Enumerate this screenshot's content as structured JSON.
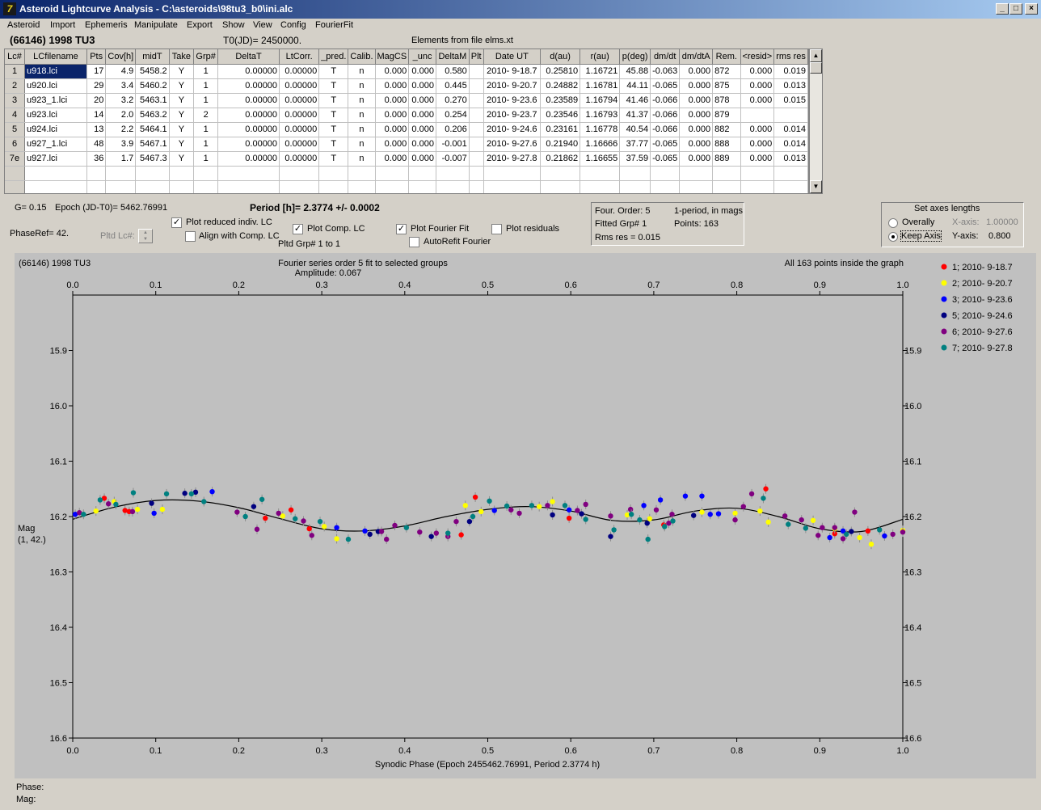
{
  "window": {
    "title": "Asteroid Lightcurve Analysis - C:\\asteroids\\98tu3_b0\\ini.alc",
    "controls": [
      "_",
      "□",
      "×"
    ]
  },
  "menu": [
    "Asteroid",
    "Import",
    "Ephemeris",
    "Manipulate",
    "Export",
    "Show",
    "View",
    "Config",
    "FourierFit"
  ],
  "header": {
    "object": "(66146) 1998 TU3",
    "t0": "T0(JD)= 2450000.",
    "elements": "Elements from file elms.xt"
  },
  "table": {
    "columns": [
      "Lc#",
      "LCfilename",
      "Pts",
      "Cov[h]",
      "midT",
      "Take",
      "Grp#",
      "DeltaT",
      "LtCorr.",
      "_pred.",
      "Calib.",
      "MagCS",
      "_unc",
      "DeltaM",
      "Plt",
      "Date UT",
      "d(au)",
      "r(au)",
      "p(deg)",
      "dm/dt",
      "dm/dtA",
      "Rem.",
      "<resid>",
      "rms res"
    ],
    "rows": [
      [
        "1",
        "u918.lci",
        "17",
        "4.9",
        "5458.2",
        "Y",
        "1",
        "0.00000",
        "0.00000",
        "T",
        "n",
        "0.000",
        "0.000",
        "0.580",
        "",
        "2010- 9-18.7",
        "0.25810",
        "1.16721",
        "45.88",
        "-0.063",
        "0.000",
        "872",
        "0.000",
        "0.019"
      ],
      [
        "2",
        "u920.lci",
        "29",
        "3.4",
        "5460.2",
        "Y",
        "1",
        "0.00000",
        "0.00000",
        "T",
        "n",
        "0.000",
        "0.000",
        "0.445",
        "",
        "2010- 9-20.7",
        "0.24882",
        "1.16781",
        "44.11",
        "-0.065",
        "0.000",
        "875",
        "0.000",
        "0.013"
      ],
      [
        "3",
        "u923_1.lci",
        "20",
        "3.2",
        "5463.1",
        "Y",
        "1",
        "0.00000",
        "0.00000",
        "T",
        "n",
        "0.000",
        "0.000",
        "0.270",
        "",
        "2010- 9-23.6",
        "0.23589",
        "1.16794",
        "41.46",
        "-0.066",
        "0.000",
        "878",
        "0.000",
        "0.015"
      ],
      [
        "4",
        "u923.lci",
        "14",
        "2.0",
        "5463.2",
        "Y",
        "2",
        "0.00000",
        "0.00000",
        "T",
        "n",
        "0.000",
        "0.000",
        "0.254",
        "",
        "2010- 9-23.7",
        "0.23546",
        "1.16793",
        "41.37",
        "-0.066",
        "0.000",
        "879",
        "",
        ""
      ],
      [
        "5",
        "u924.lci",
        "13",
        "2.2",
        "5464.1",
        "Y",
        "1",
        "0.00000",
        "0.00000",
        "T",
        "n",
        "0.000",
        "0.000",
        "0.206",
        "",
        "2010- 9-24.6",
        "0.23161",
        "1.16778",
        "40.54",
        "-0.066",
        "0.000",
        "882",
        "0.000",
        "0.014"
      ],
      [
        "6",
        "u927_1.lci",
        "48",
        "3.9",
        "5467.1",
        "Y",
        "1",
        "0.00000",
        "0.00000",
        "T",
        "n",
        "0.000",
        "0.000",
        "-0.001",
        "",
        "2010- 9-27.6",
        "0.21940",
        "1.16666",
        "37.77",
        "-0.065",
        "0.000",
        "888",
        "0.000",
        "0.014"
      ],
      [
        "7e",
        "u927.lci",
        "36",
        "1.7",
        "5467.3",
        "Y",
        "1",
        "0.00000",
        "0.00000",
        "T",
        "n",
        "0.000",
        "0.000",
        "-0.007",
        "",
        "2010- 9-27.8",
        "0.21862",
        "1.16655",
        "37.59",
        "-0.065",
        "0.000",
        "889",
        "0.000",
        "0.013"
      ]
    ]
  },
  "controls": {
    "g": "G= 0.15",
    "epoch": "Epoch (JD-T0)= 5462.76991",
    "period": "Period [h]= 2.3774 +/- 0.0002",
    "phaseref": "PhaseRef= 42.",
    "pltd_lc": "Pltd Lc#:",
    "plot_reduced": "Plot reduced indiv. LC",
    "align_comp": "Align with Comp. LC",
    "plot_comp": "Plot Comp. LC",
    "pltd_grp": "Pltd Grp#  1   to   1",
    "plot_fourier": "Plot Fourier Fit",
    "autorefit": "AutoRefit Fourier",
    "plot_residuals": "Plot residuals",
    "checks": {
      "plot_reduced": true,
      "align_comp": false,
      "plot_comp": true,
      "plot_fourier": true,
      "autorefit": false,
      "plot_residuals": false
    }
  },
  "fourier_info": {
    "order": "Four. Order:  5",
    "fitted": "Fitted Grp# 1",
    "rms": "Rms res      = 0.015",
    "mode": "1-period, in mags",
    "points": "Points: 163"
  },
  "axes_box": {
    "title": "Set axes lengths",
    "overally": "Overally",
    "keep_axis": "Keep Axis",
    "x_label": "X-axis:",
    "x_value": "1.00000",
    "y_label": "Y-axis:",
    "y_value": "0.800",
    "selected": "keep_axis"
  },
  "status": {
    "phase": "Phase:",
    "mag": "Mag:"
  },
  "chart_data": {
    "type": "scatter",
    "object_label": "(66146) 1998 TU3",
    "title": "Fourier series order 5 fit to selected groups",
    "subtitle": "Amplitude: 0.067",
    "note": "All 163 points inside the graph",
    "xlabel": "Synodic Phase (Epoch 2455462.76991, Period 2.3774 h)",
    "ylabel": "Mag",
    "ylabel2": "(1, 42.)",
    "xlim": [
      0.0,
      1.0
    ],
    "ylim": [
      15.8,
      16.6
    ],
    "y_inverted": true,
    "xticks": [
      "0.0",
      "0.1",
      "0.2",
      "0.3",
      "0.4",
      "0.5",
      "0.6",
      "0.7",
      "0.8",
      "0.9",
      "1.0"
    ],
    "yticks": [
      "15.9",
      "16.0",
      "16.1",
      "16.2",
      "16.3",
      "16.4",
      "16.5",
      "16.6"
    ],
    "yticks_values": [
      15.9,
      16.0,
      16.1,
      16.2,
      16.3,
      16.4,
      16.5,
      16.6
    ],
    "fourier_curve": {
      "x": [
        0.0,
        0.05,
        0.1,
        0.15,
        0.2,
        0.25,
        0.3,
        0.35,
        0.4,
        0.45,
        0.5,
        0.55,
        0.6,
        0.65,
        0.7,
        0.75,
        0.8,
        0.85,
        0.9,
        0.95,
        1.0
      ],
      "y": [
        16.205,
        16.183,
        16.171,
        16.172,
        16.184,
        16.204,
        16.222,
        16.226,
        16.217,
        16.2,
        16.187,
        16.182,
        16.19,
        16.207,
        16.206,
        16.19,
        16.185,
        16.2,
        16.222,
        16.227,
        16.205
      ]
    },
    "legend_position": "top-right",
    "series": [
      {
        "name": "1; 2010- 9-18.7",
        "color": "#ff0000",
        "points": [
          [
            0.038,
            16.167
          ],
          [
            0.063,
            16.189
          ],
          [
            0.068,
            16.191
          ],
          [
            0.232,
            16.203
          ],
          [
            0.263,
            16.188
          ],
          [
            0.285,
            16.222
          ],
          [
            0.468,
            16.233
          ],
          [
            0.485,
            16.165
          ],
          [
            0.598,
            16.203
          ],
          [
            0.712,
            16.215
          ],
          [
            0.835,
            16.15
          ],
          [
            0.918,
            16.231
          ],
          [
            0.958,
            16.226
          ]
        ]
      },
      {
        "name": "2; 2010- 9-20.7",
        "color": "#ffff00",
        "points": [
          [
            0.028,
            16.19
          ],
          [
            0.05,
            16.173
          ],
          [
            0.078,
            16.187
          ],
          [
            0.108,
            16.187
          ],
          [
            0.253,
            16.199
          ],
          [
            0.303,
            16.218
          ],
          [
            0.318,
            16.24
          ],
          [
            0.473,
            16.18
          ],
          [
            0.492,
            16.191
          ],
          [
            0.562,
            16.182
          ],
          [
            0.578,
            16.173
          ],
          [
            0.668,
            16.197
          ],
          [
            0.695,
            16.204
          ],
          [
            0.758,
            16.192
          ],
          [
            0.798,
            16.194
          ],
          [
            0.828,
            16.19
          ],
          [
            0.838,
            16.21
          ],
          [
            0.892,
            16.207
          ],
          [
            0.918,
            16.222
          ],
          [
            0.948,
            16.238
          ],
          [
            0.962,
            16.25
          ],
          [
            1.0,
            16.225
          ]
        ]
      },
      {
        "name": "3; 2010- 9-23.6",
        "color": "#0000ff",
        "points": [
          [
            0.003,
            16.196
          ],
          [
            0.098,
            16.194
          ],
          [
            0.168,
            16.155
          ],
          [
            0.318,
            16.22
          ],
          [
            0.352,
            16.226
          ],
          [
            0.508,
            16.189
          ],
          [
            0.598,
            16.188
          ],
          [
            0.688,
            16.18
          ],
          [
            0.708,
            16.17
          ],
          [
            0.738,
            16.163
          ],
          [
            0.758,
            16.163
          ],
          [
            0.768,
            16.196
          ],
          [
            0.778,
            16.195
          ],
          [
            0.912,
            16.238
          ],
          [
            0.928,
            16.226
          ],
          [
            0.978,
            16.235
          ]
        ]
      },
      {
        "name": "5; 2010- 9-24.6",
        "color": "#000080",
        "points": [
          [
            0.095,
            16.176
          ],
          [
            0.135,
            16.158
          ],
          [
            0.148,
            16.156
          ],
          [
            0.218,
            16.182
          ],
          [
            0.358,
            16.232
          ],
          [
            0.368,
            16.227
          ],
          [
            0.432,
            16.236
          ],
          [
            0.478,
            16.209
          ],
          [
            0.578,
            16.197
          ],
          [
            0.613,
            16.195
          ],
          [
            0.648,
            16.236
          ],
          [
            0.692,
            16.212
          ],
          [
            0.748,
            16.198
          ],
          [
            0.938,
            16.227
          ]
        ]
      },
      {
        "name": "6; 2010- 9-27.6",
        "color": "#800080",
        "points": [
          [
            0.008,
            16.193
          ],
          [
            0.043,
            16.177
          ],
          [
            0.072,
            16.191
          ],
          [
            0.198,
            16.192
          ],
          [
            0.222,
            16.223
          ],
          [
            0.248,
            16.194
          ],
          [
            0.278,
            16.208
          ],
          [
            0.288,
            16.234
          ],
          [
            0.372,
            16.227
          ],
          [
            0.378,
            16.241
          ],
          [
            0.388,
            16.216
          ],
          [
            0.418,
            16.228
          ],
          [
            0.438,
            16.23
          ],
          [
            0.452,
            16.236
          ],
          [
            0.462,
            16.209
          ],
          [
            0.528,
            16.188
          ],
          [
            0.538,
            16.194
          ],
          [
            0.572,
            16.18
          ],
          [
            0.608,
            16.189
          ],
          [
            0.618,
            16.178
          ],
          [
            0.648,
            16.199
          ],
          [
            0.672,
            16.187
          ],
          [
            0.703,
            16.188
          ],
          [
            0.718,
            16.212
          ],
          [
            0.722,
            16.196
          ],
          [
            0.798,
            16.206
          ],
          [
            0.808,
            16.182
          ],
          [
            0.818,
            16.159
          ],
          [
            0.858,
            16.199
          ],
          [
            0.878,
            16.206
          ],
          [
            0.898,
            16.234
          ],
          [
            0.903,
            16.22
          ],
          [
            0.918,
            16.22
          ],
          [
            0.928,
            16.24
          ],
          [
            0.942,
            16.192
          ],
          [
            0.988,
            16.232
          ],
          [
            1.0,
            16.228
          ]
        ]
      },
      {
        "name": "7; 2010- 9-27.8",
        "color": "#008080",
        "points": [
          [
            0.013,
            16.196
          ],
          [
            0.033,
            16.17
          ],
          [
            0.052,
            16.178
          ],
          [
            0.073,
            16.157
          ],
          [
            0.113,
            16.159
          ],
          [
            0.143,
            16.159
          ],
          [
            0.158,
            16.173
          ],
          [
            0.208,
            16.2
          ],
          [
            0.228,
            16.169
          ],
          [
            0.268,
            16.204
          ],
          [
            0.298,
            16.209
          ],
          [
            0.332,
            16.241
          ],
          [
            0.402,
            16.22
          ],
          [
            0.452,
            16.23
          ],
          [
            0.482,
            16.2
          ],
          [
            0.502,
            16.172
          ],
          [
            0.523,
            16.181
          ],
          [
            0.553,
            16.18
          ],
          [
            0.593,
            16.18
          ],
          [
            0.618,
            16.205
          ],
          [
            0.652,
            16.224
          ],
          [
            0.673,
            16.196
          ],
          [
            0.683,
            16.206
          ],
          [
            0.693,
            16.241
          ],
          [
            0.713,
            16.218
          ],
          [
            0.723,
            16.208
          ],
          [
            0.832,
            16.167
          ],
          [
            0.862,
            16.214
          ],
          [
            0.883,
            16.221
          ],
          [
            0.932,
            16.232
          ],
          [
            0.972,
            16.224
          ]
        ]
      }
    ]
  }
}
